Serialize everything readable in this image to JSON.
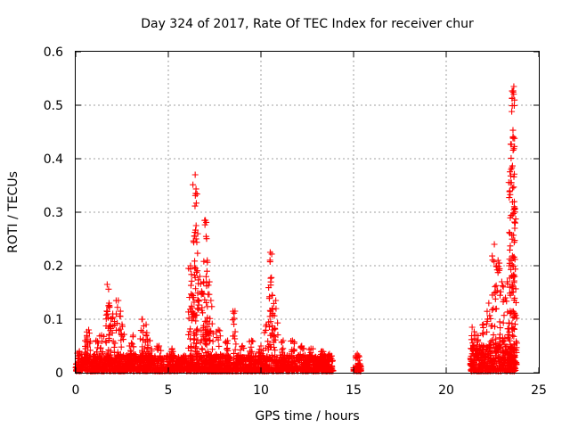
{
  "chart_data": {
    "type": "scatter",
    "title": "Day 324 of 2017, Rate Of TEC Index for receiver chur",
    "xlabel": "GPS time / hours",
    "ylabel": "ROTI / TECUs",
    "xlim": [
      0,
      25
    ],
    "ylim": [
      0,
      0.6
    ],
    "x_ticks": [
      "0",
      "5",
      "10",
      "15",
      "20",
      "25"
    ],
    "y_ticks": [
      "0",
      "0.1",
      "0.2",
      "0.3",
      "0.4",
      "0.5",
      "0.6"
    ],
    "grid": true,
    "marker": "plus",
    "color": "#ff0000",
    "spikes": [
      {
        "x": 0.2,
        "y": 0.04
      },
      {
        "x": 0.6,
        "y": 0.06
      },
      {
        "x": 0.7,
        "y": 0.08
      },
      {
        "x": 1.1,
        "y": 0.06
      },
      {
        "x": 1.4,
        "y": 0.07
      },
      {
        "x": 1.7,
        "y": 0.165
      },
      {
        "x": 1.8,
        "y": 0.13
      },
      {
        "x": 2.0,
        "y": 0.11
      },
      {
        "x": 2.3,
        "y": 0.135
      },
      {
        "x": 2.5,
        "y": 0.09
      },
      {
        "x": 2.9,
        "y": 0.05
      },
      {
        "x": 3.1,
        "y": 0.07
      },
      {
        "x": 3.6,
        "y": 0.1
      },
      {
        "x": 3.8,
        "y": 0.09
      },
      {
        "x": 4.0,
        "y": 0.06
      },
      {
        "x": 4.5,
        "y": 0.05
      },
      {
        "x": 5.2,
        "y": 0.045
      },
      {
        "x": 5.8,
        "y": 0.03
      },
      {
        "x": 6.2,
        "y": 0.2
      },
      {
        "x": 6.3,
        "y": 0.145
      },
      {
        "x": 6.45,
        "y": 0.37
      },
      {
        "x": 6.5,
        "y": 0.275
      },
      {
        "x": 6.7,
        "y": 0.18
      },
      {
        "x": 6.9,
        "y": 0.17
      },
      {
        "x": 7.0,
        "y": 0.285
      },
      {
        "x": 7.1,
        "y": 0.21
      },
      {
        "x": 7.3,
        "y": 0.135
      },
      {
        "x": 7.7,
        "y": 0.08
      },
      {
        "x": 8.2,
        "y": 0.06
      },
      {
        "x": 8.6,
        "y": 0.115
      },
      {
        "x": 9.0,
        "y": 0.05
      },
      {
        "x": 9.5,
        "y": 0.06
      },
      {
        "x": 10.0,
        "y": 0.05
      },
      {
        "x": 10.3,
        "y": 0.09
      },
      {
        "x": 10.5,
        "y": 0.225
      },
      {
        "x": 10.6,
        "y": 0.145
      },
      {
        "x": 10.8,
        "y": 0.135
      },
      {
        "x": 11.2,
        "y": 0.06
      },
      {
        "x": 11.7,
        "y": 0.06
      },
      {
        "x": 12.2,
        "y": 0.05
      },
      {
        "x": 12.7,
        "y": 0.045
      },
      {
        "x": 13.3,
        "y": 0.04
      },
      {
        "x": 13.7,
        "y": 0.035
      },
      {
        "x": 15.2,
        "y": 0.035
      },
      {
        "x": 21.4,
        "y": 0.085
      },
      {
        "x": 21.6,
        "y": 0.07
      },
      {
        "x": 22.0,
        "y": 0.09
      },
      {
        "x": 22.3,
        "y": 0.13
      },
      {
        "x": 22.6,
        "y": 0.24
      },
      {
        "x": 22.8,
        "y": 0.21
      },
      {
        "x": 23.0,
        "y": 0.17
      },
      {
        "x": 23.2,
        "y": 0.14
      },
      {
        "x": 23.4,
        "y": 0.2
      },
      {
        "x": 23.5,
        "y": 0.38
      },
      {
        "x": 23.6,
        "y": 0.44
      },
      {
        "x": 23.65,
        "y": 0.535
      },
      {
        "x": 23.7,
        "y": 0.27
      }
    ],
    "segments": [
      {
        "x_start": 0.0,
        "x_end": 13.9,
        "base_max": 0.03
      },
      {
        "x_start": 15.0,
        "x_end": 15.4,
        "base_max": 0.015
      },
      {
        "x_start": 21.3,
        "x_end": 23.8,
        "base_max": 0.05
      }
    ]
  }
}
